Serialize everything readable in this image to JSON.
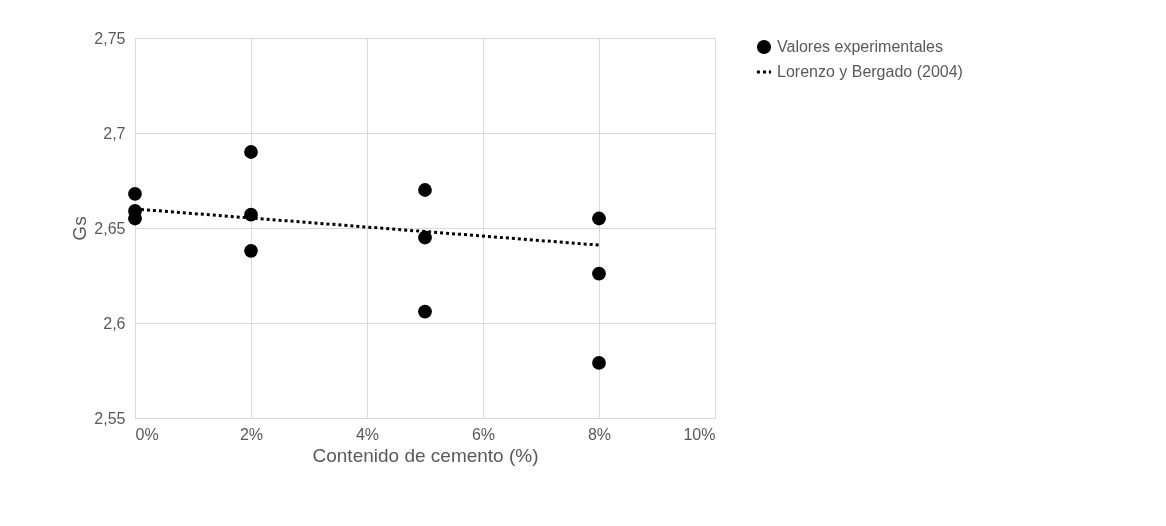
{
  "chart_data": {
    "type": "scatter",
    "xlabel": "Contenido de cemento (%)",
    "ylabel": "Gs",
    "xlim": [
      0,
      0.1
    ],
    "xticks": [
      {
        "value": 0,
        "label": "0%"
      },
      {
        "value": 0.02,
        "label": "2%"
      },
      {
        "value": 0.04,
        "label": "4%"
      },
      {
        "value": 0.06,
        "label": "6%"
      },
      {
        "value": 0.08,
        "label": "8%"
      },
      {
        "value": 0.1,
        "label": "10%"
      }
    ],
    "ylim": [
      2.55,
      2.75
    ],
    "yticks": [
      {
        "value": 2.55,
        "label": "2,55"
      },
      {
        "value": 2.6,
        "label": "2,6"
      },
      {
        "value": 2.65,
        "label": "2,65"
      },
      {
        "value": 2.7,
        "label": "2,7"
      },
      {
        "value": 2.75,
        "label": "2,75"
      }
    ],
    "grid": true,
    "legend": "right",
    "marker": "circle",
    "series": [
      {
        "name": "Valores experimentales",
        "color": "#000000",
        "x": [
          0,
          0,
          0,
          0.02,
          0.02,
          0.02,
          0.05,
          0.05,
          0.05,
          0.08,
          0.08,
          0.08
        ],
        "values": [
          2.668,
          2.659,
          2.655,
          2.69,
          2.657,
          2.638,
          2.67,
          2.645,
          2.606,
          2.655,
          2.626,
          2.579
        ]
      },
      {
        "name": "Lorenzo y Bergado (2004)",
        "type": "line",
        "line_style": "dotted",
        "marker": "none",
        "color": "#000000",
        "x": [
          0,
          0.08
        ],
        "values": [
          2.66,
          2.641
        ]
      }
    ]
  }
}
